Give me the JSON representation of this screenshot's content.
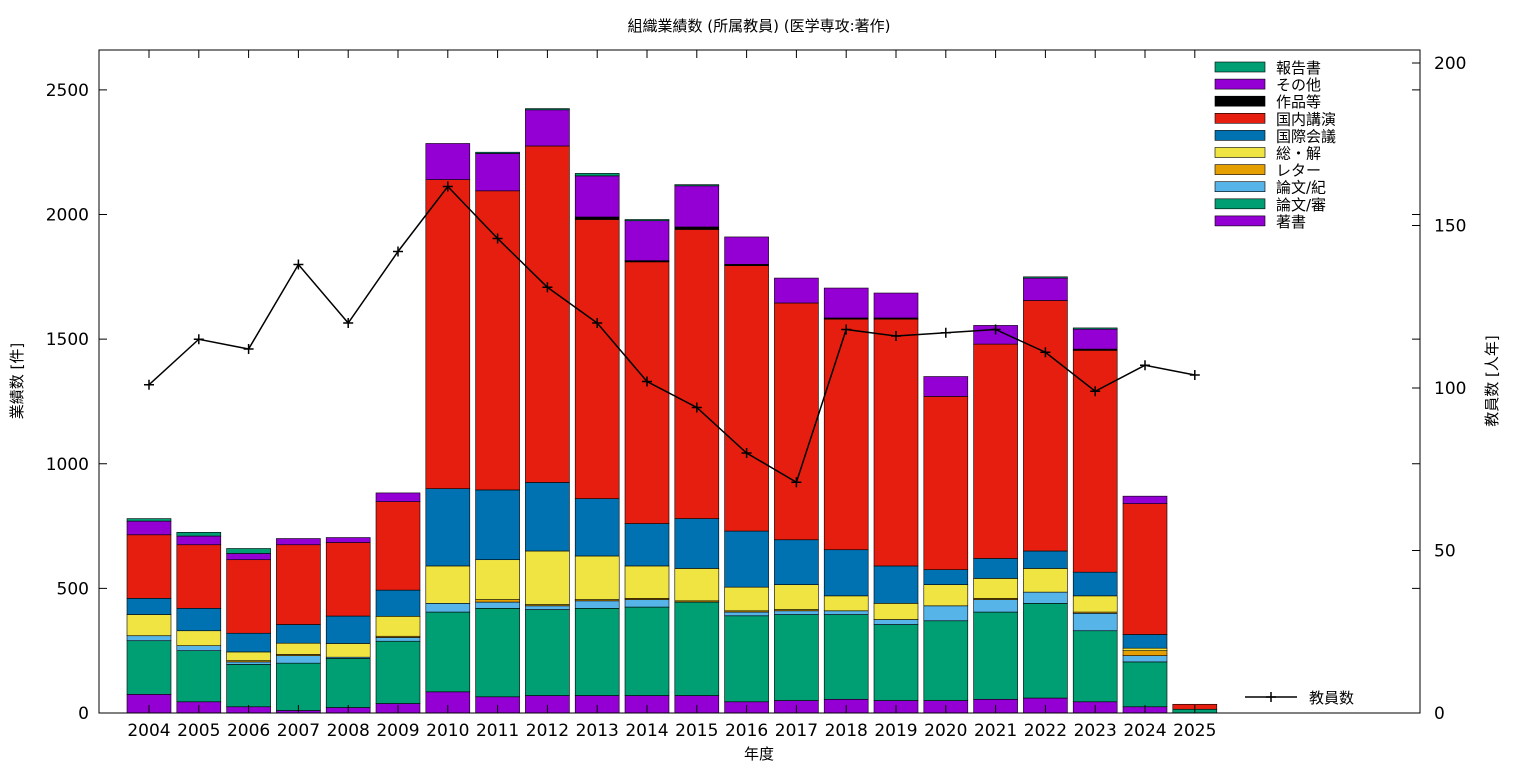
{
  "chart_data": {
    "type": "bar",
    "title": "組織業績数 (所属教員) (医学専攻:著作)",
    "xlabel": "年度",
    "ylabel": "業績数 [件]",
    "y2label": "教員数 [人年]",
    "ylim": [
      0,
      2660
    ],
    "y2lim": [
      0,
      204
    ],
    "yticks": [
      0,
      500,
      1000,
      1500,
      2000,
      2500
    ],
    "y2ticks": [
      0,
      50,
      100,
      150,
      200
    ],
    "grid": false,
    "legend_position": "top-right",
    "categories": [
      "2004",
      "2005",
      "2006",
      "2007",
      "2008",
      "2009",
      "2010",
      "2011",
      "2012",
      "2013",
      "2014",
      "2015",
      "2016",
      "2017",
      "2018",
      "2019",
      "2020",
      "2021",
      "2022",
      "2023",
      "2024",
      "2025"
    ],
    "series": [
      {
        "name": "著書",
        "color": "#9400d3",
        "values": [
          75,
          45,
          25,
          10,
          22,
          38,
          85,
          65,
          70,
          70,
          70,
          70,
          45,
          50,
          55,
          50,
          50,
          55,
          60,
          45,
          25,
          0
        ]
      },
      {
        "name": "論文/審",
        "color": "#009e73",
        "values": [
          215,
          205,
          170,
          190,
          197,
          250,
          320,
          355,
          345,
          350,
          355,
          375,
          345,
          345,
          340,
          305,
          320,
          350,
          380,
          285,
          180,
          15
        ]
      },
      {
        "name": "論文/紀",
        "color": "#56b4e9",
        "values": [
          20,
          20,
          10,
          30,
          5,
          15,
          35,
          25,
          15,
          30,
          30,
          0,
          15,
          15,
          15,
          20,
          60,
          50,
          45,
          70,
          25,
          0
        ]
      },
      {
        "name": "レター",
        "color": "#e69f00",
        "values": [
          0,
          0,
          5,
          5,
          0,
          5,
          0,
          10,
          5,
          5,
          5,
          5,
          5,
          5,
          0,
          0,
          0,
          5,
          0,
          5,
          20,
          0
        ]
      },
      {
        "name": "総・解",
        "color": "#f0e442",
        "values": [
          85,
          60,
          35,
          45,
          55,
          80,
          150,
          160,
          215,
          175,
          130,
          130,
          95,
          100,
          60,
          65,
          85,
          80,
          95,
          65,
          10,
          0
        ]
      },
      {
        "name": "国際会議",
        "color": "#0072b2",
        "values": [
          65,
          90,
          75,
          75,
          110,
          105,
          310,
          280,
          275,
          230,
          170,
          200,
          225,
          180,
          185,
          150,
          60,
          80,
          70,
          95,
          55,
          0
        ]
      },
      {
        "name": "国内講演",
        "color": "#e51e10",
        "values": [
          255,
          255,
          295,
          320,
          295,
          355,
          1240,
          1200,
          1350,
          1120,
          1050,
          1160,
          1065,
          950,
          925,
          990,
          695,
          860,
          1005,
          890,
          525,
          20
        ]
      },
      {
        "name": "作品等",
        "color": "#000000",
        "values": [
          0,
          0,
          0,
          0,
          0,
          0,
          0,
          0,
          0,
          10,
          5,
          10,
          5,
          0,
          5,
          5,
          0,
          0,
          0,
          5,
          0,
          0
        ]
      },
      {
        "name": "その他",
        "color": "#9400d3",
        "values": [
          55,
          35,
          25,
          25,
          20,
          35,
          145,
          150,
          145,
          165,
          160,
          165,
          110,
          100,
          120,
          100,
          80,
          75,
          90,
          80,
          30,
          0
        ]
      },
      {
        "name": "報告書",
        "color": "#009e73",
        "values": [
          10,
          15,
          20,
          0,
          0,
          0,
          0,
          5,
          5,
          10,
          5,
          5,
          0,
          0,
          0,
          0,
          0,
          0,
          5,
          5,
          0,
          0
        ]
      }
    ],
    "line_series": {
      "name": "教員数",
      "axis": "y2",
      "values": [
        101,
        115,
        112,
        138,
        120,
        142,
        162,
        146,
        131,
        120,
        102,
        94,
        80,
        71,
        118,
        116,
        117,
        118,
        111,
        99,
        107,
        104
      ]
    }
  }
}
